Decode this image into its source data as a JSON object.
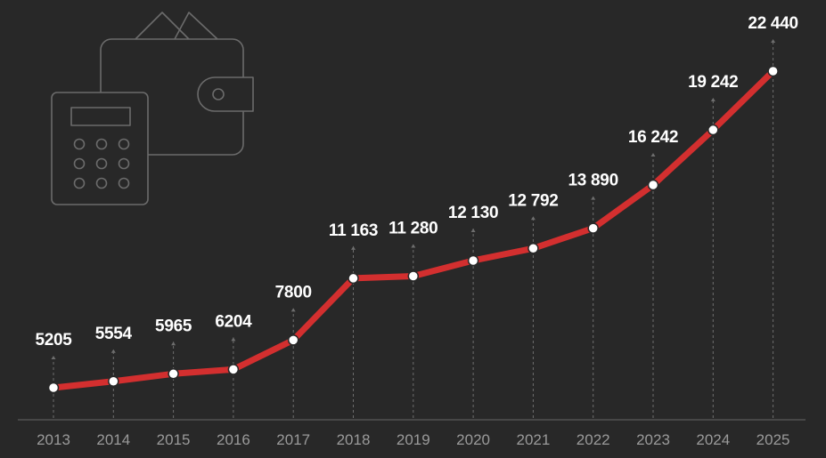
{
  "chart_data": {
    "type": "line",
    "title": "",
    "xlabel": "",
    "ylabel": "",
    "x": [
      "2013",
      "2014",
      "2015",
      "2016",
      "2017",
      "2018",
      "2019",
      "2020",
      "2021",
      "2022",
      "2023",
      "2024",
      "2025"
    ],
    "values": [
      5205,
      5554,
      5965,
      6204,
      7800,
      11163,
      11280,
      12130,
      12792,
      13890,
      16242,
      19242,
      22440
    ],
    "data_labels": [
      "5205",
      "5554",
      "5965",
      "6204",
      "7800",
      "11 163",
      "11 280",
      "12 130",
      "12 792",
      "13 890",
      "16 242",
      "19 242",
      "22 440"
    ],
    "ylim": [
      3000,
      23000
    ],
    "grid": false,
    "legend": "none",
    "colors": {
      "background": "#282828",
      "line": "#d32f2f",
      "marker_fill": "#ffffff",
      "marker_stroke": "#282828",
      "label": "#ffffff",
      "tick": "#9a9a9a",
      "axis": "#5a5a5a",
      "guide": "#6e6e6e"
    }
  },
  "decoration": {
    "icon": "wallet-calculator-icon"
  }
}
